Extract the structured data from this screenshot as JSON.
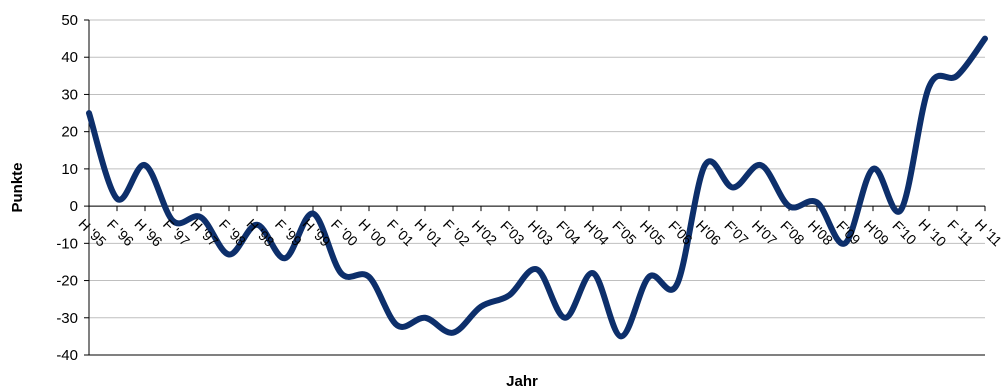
{
  "chart_data": {
    "type": "line",
    "xlabel": "Jahr",
    "ylabel": "Punkte",
    "ylim": [
      -40,
      50
    ],
    "yticks": [
      50,
      40,
      30,
      20,
      10,
      0,
      -10,
      -20,
      -30,
      -40
    ],
    "grid": true,
    "line_color": "#0d2f6b",
    "grid_color": "#bfbfbf",
    "categories": [
      "H '95",
      "F '96",
      "H '96",
      "F '97",
      "H '97",
      "F '98",
      "H '98",
      "F '99",
      "H '99",
      "F '00",
      "H '00",
      "F '01",
      "H '01",
      "F '02",
      "H'02",
      "F'03",
      "H'03",
      "F'04",
      "H'04",
      "F'05",
      "H'05",
      "F'06",
      "H'06",
      "F'07",
      "H'07",
      "F'08",
      "H'08",
      "F'09",
      "H'09",
      "F'10",
      "H'10",
      "F'11",
      "H'11"
    ],
    "x_tick_labels": [
      "H '95",
      "F '96",
      "H '96",
      "F '97",
      "H '97",
      "F '98",
      "H '98",
      "F '99",
      "H '99",
      "F '00",
      "H '00",
      "F '01",
      "H '01",
      "F '02",
      "H'02",
      "F'03",
      "H'03",
      "F'04",
      "H'04",
      "F'05",
      "H'05",
      "F'06",
      "H'06",
      "F'07",
      "H'07",
      "F'08",
      "H'08",
      "F'09",
      "H'09",
      "F'10",
      "H '10",
      "F '11",
      "H '11"
    ],
    "series": [
      {
        "values": [
          25,
          2,
          11,
          -4,
          -3,
          -13,
          -5,
          -14,
          -2,
          -18,
          -19,
          -32,
          -30,
          -34,
          -27,
          -24,
          -17,
          -30,
          -18,
          -35,
          -19,
          -21,
          11,
          5,
          11,
          0,
          1,
          -10,
          10,
          -1,
          32,
          35,
          45
        ]
      }
    ]
  }
}
